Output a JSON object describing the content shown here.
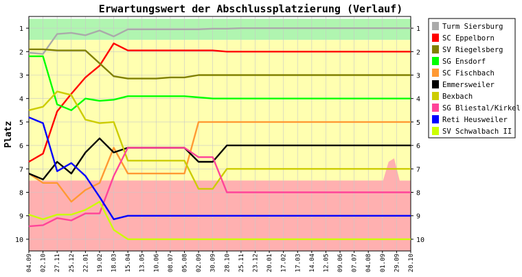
{
  "chart_data": {
    "type": "line",
    "title": "Erwartungswert der Abschlussplatzierung (Verlauf)",
    "ylabel": "Platz",
    "xlabel": "",
    "ylim": [
      1,
      10
    ],
    "y_inverted": true,
    "y_ticks": [
      "1",
      "2",
      "3",
      "4",
      "5",
      "6",
      "7",
      "8",
      "9",
      "10"
    ],
    "x": [
      "04.09",
      "02.10",
      "27.11",
      "25.12",
      "22.01",
      "19.02",
      "18.03",
      "15.04",
      "13.05",
      "10.06",
      "08.07",
      "05.08",
      "02.09",
      "30.09",
      "28.10",
      "25.11",
      "23.12",
      "20.01",
      "17.02",
      "17.03",
      "14.04",
      "12.05",
      "09.06",
      "07.07",
      "04.08",
      "01.09",
      "29.09",
      "20.10"
    ],
    "grid": true,
    "legend_position": "right",
    "background_zones": [
      {
        "from": 0.6,
        "to": 1.5,
        "color": "#b0f5b0"
      },
      {
        "from": 1.5,
        "to": 7.5,
        "color": "#ffffb0"
      },
      {
        "from": 7.5,
        "to": 10.5,
        "color": "#ffb0b0"
      }
    ],
    "band": {
      "color": "#ffb0b0",
      "upper": [
        8.1,
        8.0,
        8.0,
        8.15,
        8.2,
        8.0,
        7.6,
        7.5,
        7.5,
        7.5,
        7.5,
        7.5,
        7.5,
        7.5,
        7.5,
        7.5,
        7.5,
        7.5,
        7.5,
        7.5,
        7.5,
        7.5,
        7.5,
        7.5,
        7.5,
        7.5,
        7.5,
        7.5,
        7.5,
        7.5,
        7.5,
        7.5,
        7.5,
        7.5,
        7.5,
        7.5,
        7.5,
        7.5,
        7.5,
        7.5,
        7.5,
        7.5,
        7.5,
        7.5,
        7.5,
        7.5,
        7.5,
        7.5,
        7.5,
        7.5,
        7.5,
        7.5,
        7.5,
        7.5,
        7.5,
        7.5,
        7.5,
        7.5,
        7.5,
        7.5,
        7.5,
        7.5,
        7.5,
        7.5,
        7.5,
        6.7,
        6.55,
        7.5,
        8.5,
        8.5
      ]
    },
    "x_steps": [
      0,
      1,
      2,
      3,
      4,
      5,
      6,
      7,
      8,
      9,
      10,
      11,
      12,
      13,
      14,
      15,
      16,
      17,
      18,
      19,
      20,
      21,
      22,
      23,
      24,
      25,
      26,
      27
    ],
    "series": [
      {
        "name": "Turm Siersburg",
        "color": "#aaaaaa",
        "values": [
          2.05,
          2.1,
          1.25,
          1.2,
          1.3,
          1.1,
          1.35,
          1.05,
          1.05,
          1.05,
          1.05,
          1.05,
          1.05,
          1.02,
          1.02,
          1.0,
          1.0,
          1.0,
          1.0,
          1.0,
          1.0,
          1.0,
          1.0,
          1.0,
          1.0,
          1.0,
          1.0,
          1.0
        ]
      },
      {
        "name": "SC Eppelborn",
        "color": "#ff0000",
        "values": [
          6.7,
          6.35,
          4.55,
          3.8,
          3.1,
          2.6,
          1.65,
          1.95,
          1.95,
          1.95,
          1.95,
          1.95,
          1.95,
          1.95,
          2.0,
          2.0,
          2.0,
          2.0,
          2.0,
          2.0,
          2.0,
          2.0,
          2.0,
          2.0,
          2.0,
          2.0,
          2.0,
          2.0
        ]
      },
      {
        "name": "SV Riegelsberg",
        "color": "#808000",
        "values": [
          1.9,
          1.9,
          1.95,
          1.95,
          1.95,
          2.5,
          3.05,
          3.15,
          3.15,
          3.15,
          3.1,
          3.1,
          3.0,
          3.0,
          3.0,
          3.0,
          3.0,
          3.0,
          3.0,
          3.0,
          3.0,
          3.0,
          3.0,
          3.0,
          3.0,
          3.0,
          3.0,
          3.0
        ]
      },
      {
        "name": "SG Ensdorf",
        "color": "#00ff00",
        "values": [
          2.2,
          2.2,
          4.25,
          4.5,
          4.0,
          4.1,
          4.05,
          3.9,
          3.9,
          3.9,
          3.9,
          3.9,
          3.95,
          4.0,
          4.0,
          4.0,
          4.0,
          4.0,
          4.0,
          4.0,
          4.0,
          4.0,
          4.0,
          4.0,
          4.0,
          4.0,
          4.0,
          4.0
        ]
      },
      {
        "name": "SC Fischbach",
        "color": "#ff9933",
        "values": [
          7.2,
          7.6,
          7.6,
          8.4,
          7.9,
          7.6,
          6.1,
          7.2,
          7.2,
          7.2,
          7.2,
          7.2,
          5.0,
          5.0,
          5.0,
          5.0,
          5.0,
          5.0,
          5.0,
          5.0,
          5.0,
          5.0,
          5.0,
          5.0,
          5.0,
          5.0,
          5.0,
          5.0
        ]
      },
      {
        "name": "Emmersweiler",
        "color": "#000000",
        "values": [
          7.2,
          7.45,
          6.7,
          7.2,
          6.3,
          5.7,
          6.3,
          6.1,
          6.1,
          6.1,
          6.1,
          6.1,
          6.7,
          6.7,
          6.0,
          6.0,
          6.0,
          6.0,
          6.0,
          6.0,
          6.0,
          6.0,
          6.0,
          6.0,
          6.0,
          6.0,
          6.0,
          6.0
        ]
      },
      {
        "name": "Bexbach",
        "color": "#cccc00",
        "values": [
          4.5,
          4.35,
          3.7,
          3.85,
          4.9,
          5.05,
          5.0,
          6.65,
          6.65,
          6.65,
          6.65,
          6.65,
          7.85,
          7.85,
          7.0,
          7.0,
          7.0,
          7.0,
          7.0,
          7.0,
          7.0,
          7.0,
          7.0,
          7.0,
          7.0,
          7.0,
          7.0,
          7.0
        ]
      },
      {
        "name": "SG Bliestal/Kirkel",
        "color": "#ff4499",
        "values": [
          9.45,
          9.4,
          9.1,
          9.2,
          8.9,
          8.9,
          7.3,
          6.1,
          6.1,
          6.1,
          6.1,
          6.1,
          6.5,
          6.5,
          8.0,
          8.0,
          8.0,
          8.0,
          8.0,
          8.0,
          8.0,
          8.0,
          8.0,
          8.0,
          8.0,
          8.0,
          8.0,
          8.0
        ]
      },
      {
        "name": "Reti Heusweiler",
        "color": "#0000ff",
        "values": [
          4.8,
          5.05,
          7.1,
          6.75,
          7.3,
          8.2,
          9.15,
          9.0,
          9.0,
          9.0,
          9.0,
          9.0,
          9.0,
          9.0,
          9.0,
          9.0,
          9.0,
          9.0,
          9.0,
          9.0,
          9.0,
          9.0,
          9.0,
          9.0,
          9.0,
          9.0,
          9.0,
          9.0
        ]
      },
      {
        "name": "SV Schwalbach II",
        "color": "#ccff00",
        "values": [
          8.95,
          9.15,
          8.95,
          8.95,
          8.75,
          8.4,
          9.6,
          10.0,
          10.0,
          10.0,
          10.0,
          10.0,
          10.0,
          10.0,
          10.0,
          10.0,
          10.0,
          10.0,
          10.0,
          10.0,
          10.0,
          10.0,
          10.0,
          10.0,
          10.0,
          10.0,
          10.0,
          10.0
        ]
      }
    ]
  }
}
